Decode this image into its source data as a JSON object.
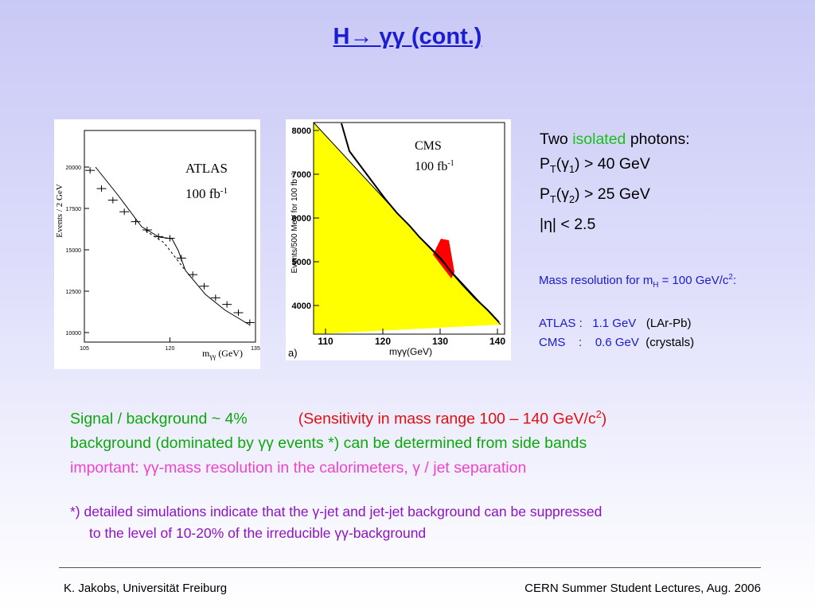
{
  "slide": {
    "title": "H→ γγ (cont.)"
  },
  "atlas_plot": {
    "label": "ATLAS",
    "lumi_prefix": "100 fb",
    "lumi_exp": "-1",
    "ylabel": "Events / 2 GeV",
    "xlabel_prefix": "m",
    "xlabel_sub": "γγ",
    "xlabel_unit": "(GeV)",
    "yticks": [
      "20000",
      "17500",
      "15000",
      "12500",
      "10000"
    ],
    "xticks": [
      "105",
      "120",
      "135"
    ],
    "points": [
      [
        106,
        19800
      ],
      [
        108,
        18700
      ],
      [
        110,
        18000
      ],
      [
        112,
        17300
      ],
      [
        114,
        16700
      ],
      [
        116,
        16200
      ],
      [
        118,
        15800
      ],
      [
        120,
        15700
      ],
      [
        122,
        14500
      ],
      [
        124,
        13500
      ],
      [
        126,
        12800
      ],
      [
        128,
        12100
      ],
      [
        130,
        11700
      ],
      [
        132,
        11200
      ],
      [
        134,
        10600
      ]
    ]
  },
  "cms_plot": {
    "label": "CMS",
    "lumi_prefix": "100 fb",
    "lumi_exp": "-1",
    "ylabel": "Events/500 MeV for 100 fb⁻¹",
    "xlabel": "mγγ(GeV)",
    "panel_tag": "a)",
    "yticks": [
      "8000",
      "7000",
      "6000",
      "5000",
      "4000"
    ],
    "xticks": [
      "110",
      "120",
      "130",
      "140"
    ],
    "background_color": "#ffff00",
    "signal_color": "#ff0000"
  },
  "cuts": {
    "line1_a": "Two",
    "line1_iso": "isolated",
    "line1_b": "photons:",
    "pt1_a": "P",
    "pt1_sub": "T",
    "pt1_b": "(γ",
    "pt1_sub2": "1",
    "pt1_c": ") > 40 GeV",
    "pt2_a": "P",
    "pt2_sub": "T",
    "pt2_b": "(γ",
    "pt2_sub2": "2",
    "pt2_c": ") > 25 GeV",
    "eta": "|η| < 2.5"
  },
  "resolution": {
    "head_a": "Mass resolution for m",
    "head_sub": "H",
    "head_b": " = 100 GeV/c",
    "head_sup": "2",
    "head_c": ":",
    "atlas_name": "ATLAS :",
    "atlas_val": "1.1 GeV",
    "atlas_det": "(LAr-Pb)",
    "cms_name": "CMS    :",
    "cms_val": "0.6 GeV",
    "cms_det": "(crystals)"
  },
  "body": {
    "signal": "Signal / background  ~ 4%",
    "sensitivity_a": "(Sensitivity in mass range  100 – 140 GeV/c",
    "sensitivity_sup": "2",
    "sensitivity_b": ")",
    "background": "background  (dominated by γγ events *) can be determined from side bands",
    "important": "important:  γγ-mass resolution in the calorimeters, γ / jet separation",
    "foot1": "*) detailed simulations indicate that the γ-jet and jet-jet background can be suppressed",
    "foot2": "to the level of 10-20% of the irreducible γγ-background"
  },
  "footer": {
    "left": "K. Jakobs,  Universität Freiburg",
    "right": "CERN Summer Student Lectures,  Aug. 2006"
  }
}
